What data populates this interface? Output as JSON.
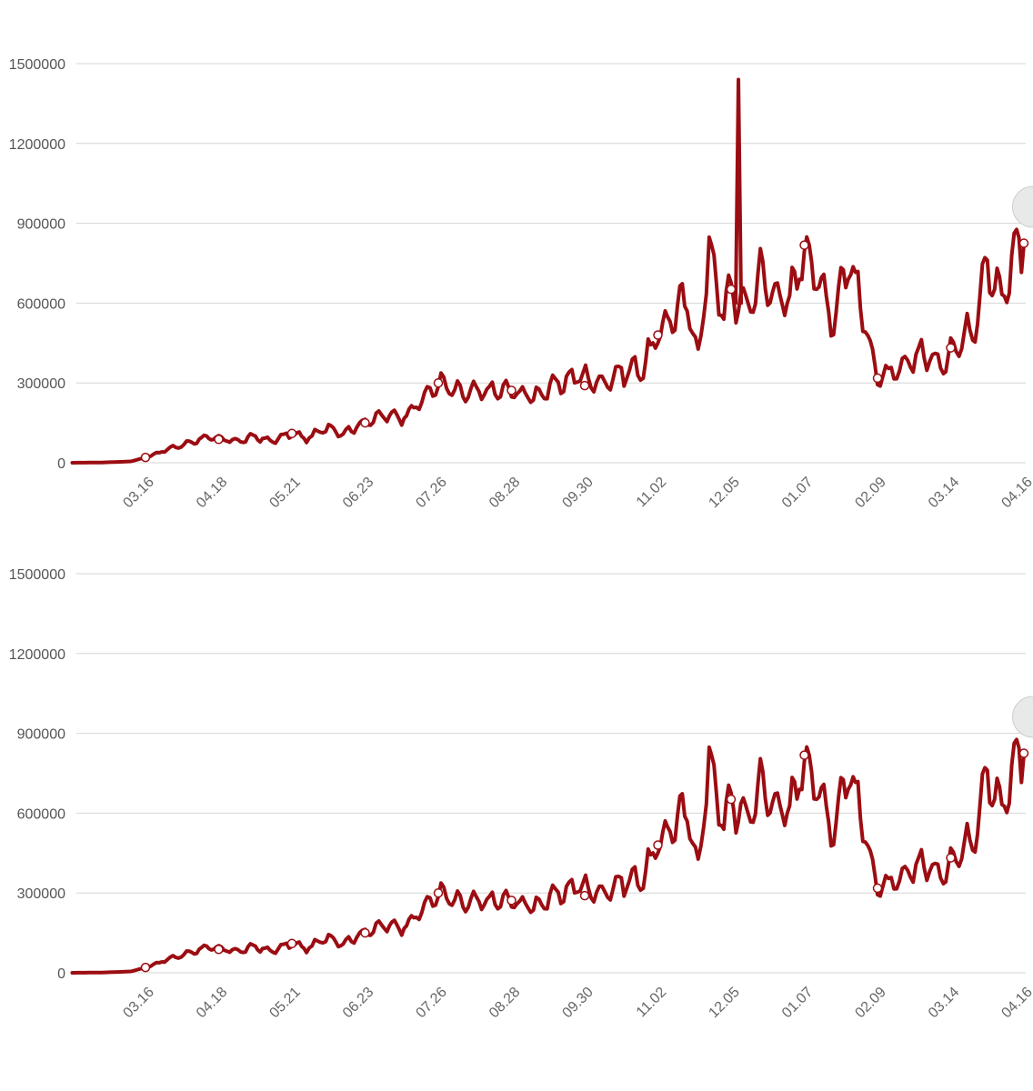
{
  "charts": [
    {
      "id": "top"
    },
    {
      "id": "bottom"
    }
  ],
  "chart_data": [
    {
      "type": "line",
      "title": "",
      "xlabel": "",
      "ylabel": "",
      "ylim": [
        0,
        1500000
      ],
      "y_ticks": [
        "0",
        "300000",
        "600000",
        "900000",
        "1200000",
        "1500000"
      ],
      "x_ticks": [
        "03.16",
        "04.18",
        "05.21",
        "06.23",
        "07.26",
        "08.28",
        "09.30",
        "11.02",
        "12.05",
        "01.07",
        "02.09",
        "03.14",
        "04.16"
      ],
      "grid": true,
      "series": [
        {
          "color": "#9b0d12",
          "points": [
            [
              -1.0,
              0
            ],
            [
              -0.6,
              1000
            ],
            [
              -0.2,
              5000
            ],
            [
              0.0,
              20000
            ],
            [
              0.3,
              50000
            ],
            [
              0.6,
              75000
            ],
            [
              0.8,
              95000
            ],
            [
              1.0,
              90000
            ],
            [
              1.3,
              82000
            ],
            [
              1.5,
              100000
            ],
            [
              1.7,
              80000
            ],
            [
              2.0,
              110000
            ],
            [
              2.2,
              90000
            ],
            [
              2.5,
              135000
            ],
            [
              2.7,
              110000
            ],
            [
              3.0,
              155000
            ],
            [
              3.3,
              180000
            ],
            [
              3.5,
              170000
            ],
            [
              3.7,
              215000
            ],
            [
              4.0,
              300000
            ],
            [
              4.3,
              260000
            ],
            [
              4.7,
              270000
            ],
            [
              5.0,
              270000
            ],
            [
              5.3,
              250000
            ],
            [
              5.6,
              290000
            ],
            [
              5.9,
              330000
            ],
            [
              6.2,
              300000
            ],
            [
              6.5,
              340000
            ],
            [
              6.8,
              360000
            ],
            [
              7.0,
              480000
            ],
            [
              7.2,
              560000
            ],
            [
              7.4,
              600000
            ],
            [
              7.55,
              400000
            ],
            [
              7.7,
              800000
            ],
            [
              7.9,
              560000
            ],
            [
              8.0,
              650000
            ],
            [
              8.2,
              580000
            ],
            [
              8.4,
              700000
            ],
            [
              8.6,
              640000
            ],
            [
              8.8,
              600000
            ],
            [
              9.0,
              820000
            ],
            [
              9.2,
              680000
            ],
            [
              9.4,
              540000
            ],
            [
              9.6,
              780000
            ],
            [
              9.8,
              560000
            ],
            [
              10.0,
              320000
            ],
            [
              10.3,
              340000
            ],
            [
              10.6,
              420000
            ],
            [
              10.9,
              360000
            ],
            [
              11.0,
              430000
            ],
            [
              11.3,
              500000
            ],
            [
              11.5,
              780000
            ],
            [
              11.7,
              600000
            ],
            [
              11.9,
              820000
            ],
            [
              12.0,
              820000
            ]
          ],
          "spike": {
            "x": 8.1,
            "value": 1440000
          },
          "markers": [
            [
              0.0,
              20000
            ],
            [
              1.0,
              88000
            ],
            [
              2.0,
              110000
            ],
            [
              3.0,
              150000
            ],
            [
              4.0,
              300000
            ],
            [
              5.0,
              272000
            ],
            [
              6.0,
              290000
            ],
            [
              7.0,
              480000
            ],
            [
              8.0,
              652000
            ],
            [
              9.0,
              818000
            ],
            [
              10.0,
              318000
            ],
            [
              11.0,
              432000
            ],
            [
              12.0,
              825000
            ]
          ]
        }
      ]
    },
    {
      "type": "line",
      "title": "",
      "xlabel": "",
      "ylabel": "",
      "ylim": [
        0,
        1500000
      ],
      "y_ticks": [
        "0",
        "300000",
        "600000",
        "900000",
        "1200000",
        "1500000"
      ],
      "x_ticks": [
        "03.16",
        "04.18",
        "05.21",
        "06.23",
        "07.26",
        "08.28",
        "09.30",
        "11.02",
        "12.05",
        "01.07",
        "02.09",
        "03.14",
        "04.16"
      ],
      "grid": true,
      "series": [
        {
          "color": "#9b0d12",
          "points": [
            [
              -1.0,
              0
            ],
            [
              -0.6,
              1000
            ],
            [
              -0.2,
              5000
            ],
            [
              0.0,
              20000
            ],
            [
              0.3,
              50000
            ],
            [
              0.6,
              75000
            ],
            [
              0.8,
              95000
            ],
            [
              1.0,
              90000
            ],
            [
              1.3,
              82000
            ],
            [
              1.5,
              100000
            ],
            [
              1.7,
              80000
            ],
            [
              2.0,
              110000
            ],
            [
              2.2,
              90000
            ],
            [
              2.5,
              135000
            ],
            [
              2.7,
              110000
            ],
            [
              3.0,
              155000
            ],
            [
              3.3,
              180000
            ],
            [
              3.5,
              170000
            ],
            [
              3.7,
              215000
            ],
            [
              4.0,
              300000
            ],
            [
              4.3,
              260000
            ],
            [
              4.7,
              270000
            ],
            [
              5.0,
              270000
            ],
            [
              5.3,
              250000
            ],
            [
              5.6,
              290000
            ],
            [
              5.9,
              330000
            ],
            [
              6.2,
              300000
            ],
            [
              6.5,
              340000
            ],
            [
              6.8,
              360000
            ],
            [
              7.0,
              480000
            ],
            [
              7.2,
              560000
            ],
            [
              7.4,
              600000
            ],
            [
              7.55,
              400000
            ],
            [
              7.7,
              800000
            ],
            [
              7.9,
              560000
            ],
            [
              8.0,
              650000
            ],
            [
              8.2,
              580000
            ],
            [
              8.4,
              700000
            ],
            [
              8.6,
              640000
            ],
            [
              8.8,
              600000
            ],
            [
              9.0,
              820000
            ],
            [
              9.2,
              680000
            ],
            [
              9.4,
              540000
            ],
            [
              9.6,
              780000
            ],
            [
              9.8,
              560000
            ],
            [
              10.0,
              320000
            ],
            [
              10.3,
              340000
            ],
            [
              10.6,
              420000
            ],
            [
              10.9,
              360000
            ],
            [
              11.0,
              430000
            ],
            [
              11.3,
              500000
            ],
            [
              11.5,
              780000
            ],
            [
              11.7,
              600000
            ],
            [
              11.9,
              820000
            ],
            [
              12.0,
              820000
            ]
          ],
          "markers": [
            [
              0.0,
              20000
            ],
            [
              1.0,
              88000
            ],
            [
              2.0,
              110000
            ],
            [
              3.0,
              150000
            ],
            [
              4.0,
              300000
            ],
            [
              5.0,
              272000
            ],
            [
              6.0,
              290000
            ],
            [
              7.0,
              480000
            ],
            [
              8.0,
              652000
            ],
            [
              9.0,
              818000
            ],
            [
              10.0,
              318000
            ],
            [
              11.0,
              432000
            ],
            [
              12.0,
              825000
            ]
          ]
        }
      ]
    }
  ]
}
